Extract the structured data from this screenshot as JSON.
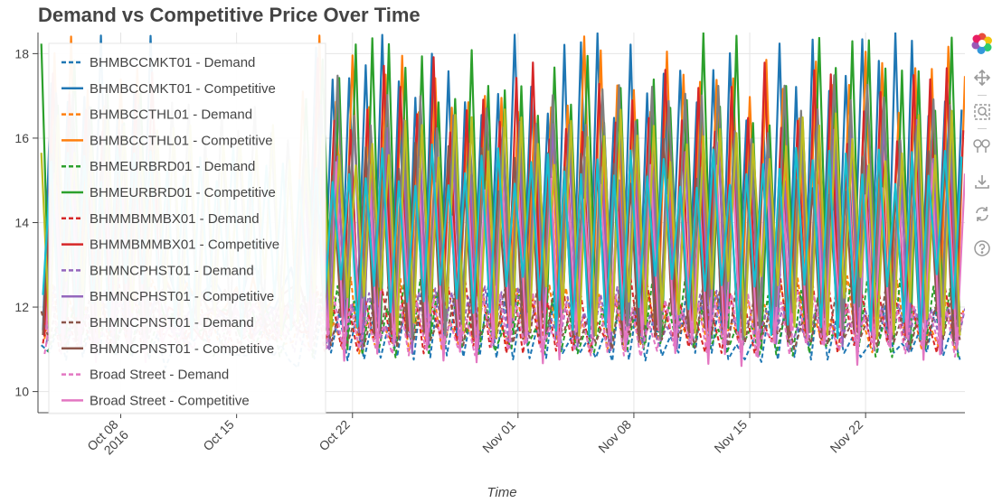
{
  "chart_data": {
    "type": "line",
    "title": "Demand vs Competitive Price Over Time",
    "xlabel": "Time",
    "ylabel": "",
    "ylim": [
      9.5,
      18.5
    ],
    "y_ticks": [
      10,
      12,
      14,
      16,
      18
    ],
    "x_range": [
      "2016-10-03",
      "2016-11-28"
    ],
    "x_ticks": [
      {
        "date": "2016-10-08",
        "label": "Oct 08",
        "sublabel": "2016"
      },
      {
        "date": "2016-10-15",
        "label": "Oct 15",
        "sublabel": ""
      },
      {
        "date": "2016-10-22",
        "label": "Oct 22",
        "sublabel": ""
      },
      {
        "date": "2016-11-01",
        "label": "Nov 01",
        "sublabel": ""
      },
      {
        "date": "2016-11-08",
        "label": "Nov 08",
        "sublabel": ""
      },
      {
        "date": "2016-11-15",
        "label": "Nov 15",
        "sublabel": ""
      },
      {
        "date": "2016-11-22",
        "label": "Nov 22",
        "sublabel": ""
      }
    ],
    "grid": true,
    "legend_position": "top-left",
    "series": [
      {
        "name": "BHMBCCMKT01 - Demand",
        "color": "#1f77b4",
        "dash": true,
        "low": 10.7,
        "high": 12.6,
        "base": 11.1
      },
      {
        "name": "BHMBCCMKT01 - Competitive",
        "color": "#1f77b4",
        "dash": false,
        "low": 11.2,
        "high": 18.5,
        "base": 12.4
      },
      {
        "name": "BHMBCCTHL01 - Demand",
        "color": "#ff7f0e",
        "dash": true,
        "low": 10.9,
        "high": 12.8,
        "base": 11.5
      },
      {
        "name": "BHMBCCTHL01 - Competitive",
        "color": "#ff7f0e",
        "dash": false,
        "low": 11.3,
        "high": 18.5,
        "base": 12.3
      },
      {
        "name": "BHMEURBRD01 - Demand",
        "color": "#2ca02c",
        "dash": true,
        "low": 10.8,
        "high": 12.7,
        "base": 11.4
      },
      {
        "name": "BHMEURBRD01 - Competitive",
        "color": "#2ca02c",
        "dash": false,
        "low": 11.0,
        "high": 18.5,
        "base": 11.9
      },
      {
        "name": "BHMMBMMBX01 - Demand",
        "color": "#d62728",
        "dash": true,
        "low": 10.9,
        "high": 12.9,
        "base": 11.6
      },
      {
        "name": "BHMMBMMBX01 - Competitive",
        "color": "#d62728",
        "dash": false,
        "low": 11.3,
        "high": 18.0,
        "base": 11.8
      },
      {
        "name": "BHMNCPHST01 - Demand",
        "color": "#9467bd",
        "dash": true,
        "low": 11.0,
        "high": 12.5,
        "base": 11.5
      },
      {
        "name": "BHMNCPHST01 - Competitive",
        "color": "#9467bd",
        "dash": false,
        "low": 10.9,
        "high": 16.5,
        "base": 11.7
      },
      {
        "name": "BHMNCPNST01 - Demand",
        "color": "#8c564b",
        "dash": true,
        "low": 11.0,
        "high": 12.6,
        "base": 11.6
      },
      {
        "name": "BHMNCPNST01 - Competitive",
        "color": "#8c564b",
        "dash": false,
        "low": 11.1,
        "high": 16.0,
        "base": 12.0
      },
      {
        "name": "Broad Street - Demand",
        "color": "#e377c2",
        "dash": true,
        "low": 10.8,
        "high": 12.4,
        "base": 11.4
      },
      {
        "name": "Broad Street - Competitive",
        "color": "#e377c2",
        "dash": false,
        "low": 10.6,
        "high": 15.5,
        "base": 11.5
      }
    ],
    "extra_series_colors": [
      "#7f7f7f",
      "#bcbd22",
      "#17becf"
    ]
  },
  "toolbar": {
    "logo": "bokeh-logo-icon",
    "tools": [
      "pan-icon",
      "box-zoom-icon",
      "wheel-zoom-icon",
      "save-icon",
      "reset-icon",
      "help-icon"
    ]
  }
}
